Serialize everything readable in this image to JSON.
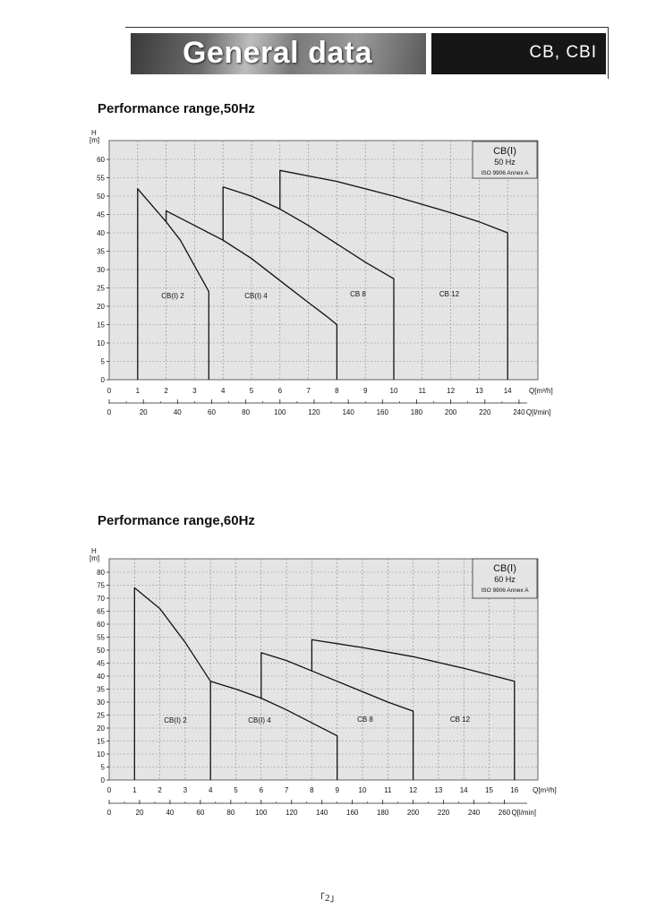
{
  "header": {
    "title": "General data",
    "model": "CB, CBI"
  },
  "page_number": "「2」",
  "chart_data": [
    {
      "type": "line",
      "title": "Performance range,50Hz",
      "legend_lines": [
        "CB(Ⅰ)",
        "50 Hz",
        "ISO 9906 Annex A"
      ],
      "y_label_top": "H",
      "y_label_unit": "[m]",
      "x_label": "Q[m³/h]",
      "x2_label": "Q[l/min]",
      "xlim": [
        0,
        15
      ],
      "ylim": [
        0,
        65
      ],
      "x_ticks": [
        0,
        1,
        2,
        3,
        4,
        5,
        6,
        7,
        8,
        9,
        10,
        11,
        12,
        13,
        14
      ],
      "y_ticks": [
        0,
        5,
        10,
        15,
        20,
        25,
        30,
        35,
        40,
        45,
        50,
        55,
        60
      ],
      "x2_ticks": [
        0,
        20,
        40,
        60,
        80,
        100,
        120,
        140,
        160,
        180,
        200,
        220,
        240
      ],
      "series": [
        {
          "name": "CB(Ⅰ) 2",
          "points": [
            [
              1,
              0
            ],
            [
              1,
              52
            ],
            [
              2,
              43
            ],
            [
              2.5,
              38
            ],
            [
              3,
              31
            ],
            [
              3.5,
              24
            ],
            [
              3.5,
              0
            ]
          ]
        },
        {
          "name": "CB(Ⅰ) 4",
          "points": [
            [
              2,
              43
            ],
            [
              2,
              46
            ],
            [
              3,
              42
            ],
            [
              4,
              38
            ],
            [
              5,
              33
            ],
            [
              6,
              27
            ],
            [
              7,
              21
            ],
            [
              7.6,
              17.5
            ],
            [
              8,
              15
            ],
            [
              8,
              0
            ]
          ]
        },
        {
          "name": "CB 8",
          "points": [
            [
              4,
              38
            ],
            [
              4,
              52.5
            ],
            [
              5,
              50
            ],
            [
              6,
              46.5
            ],
            [
              7,
              42
            ],
            [
              8,
              37
            ],
            [
              9,
              32
            ],
            [
              10,
              27.5
            ],
            [
              10,
              0
            ]
          ]
        },
        {
          "name": "CB 12",
          "points": [
            [
              6,
              46.5
            ],
            [
              6,
              57
            ],
            [
              8,
              54
            ],
            [
              10,
              50
            ],
            [
              12,
              45.5
            ],
            [
              13,
              43
            ],
            [
              14,
              40
            ],
            [
              14,
              0
            ]
          ]
        }
      ]
    },
    {
      "type": "line",
      "title": "Performance range,60Hz",
      "legend_lines": [
        "CB(Ⅰ)",
        "60 Hz",
        "ISO 9906 Annex A"
      ],
      "y_label_top": "H",
      "y_label_unit": "[m]",
      "x_label": "Q[m³/h]",
      "x2_label": "Q[l/min]",
      "xlim": [
        0,
        17
      ],
      "ylim": [
        0,
        85
      ],
      "x_ticks": [
        0,
        1,
        2,
        3,
        4,
        5,
        6,
        7,
        8,
        9,
        10,
        11,
        12,
        13,
        14,
        15,
        16
      ],
      "y_ticks": [
        0,
        5,
        10,
        15,
        20,
        25,
        30,
        35,
        40,
        45,
        50,
        55,
        60,
        65,
        70,
        75,
        80
      ],
      "x2_ticks": [
        0,
        20,
        40,
        60,
        80,
        100,
        120,
        140,
        160,
        180,
        200,
        220,
        240,
        260
      ],
      "series": [
        {
          "name": "CB(Ⅰ) 2",
          "points": [
            [
              1,
              0
            ],
            [
              1,
              74
            ],
            [
              2,
              66
            ],
            [
              3,
              53
            ],
            [
              4,
              38
            ],
            [
              4,
              0
            ]
          ]
        },
        {
          "name": "CB(Ⅰ) 4",
          "points": [
            [
              4,
              38
            ],
            [
              5,
              35
            ],
            [
              6,
              31.5
            ],
            [
              7,
              27
            ],
            [
              8,
              22
            ],
            [
              9,
              17
            ],
            [
              9,
              0
            ]
          ]
        },
        {
          "name": "CB 8",
          "points": [
            [
              6,
              31.5
            ],
            [
              6,
              49
            ],
            [
              7,
              46
            ],
            [
              8,
              42
            ],
            [
              9,
              38
            ],
            [
              10,
              34
            ],
            [
              11,
              30
            ],
            [
              12,
              26.5
            ],
            [
              12,
              0
            ]
          ]
        },
        {
          "name": "CB 12",
          "points": [
            [
              8,
              42
            ],
            [
              8,
              54
            ],
            [
              10,
              51
            ],
            [
              12,
              47.5
            ],
            [
              14,
              43
            ],
            [
              15,
              40.5
            ],
            [
              16,
              38
            ],
            [
              16,
              0
            ]
          ]
        }
      ]
    }
  ]
}
